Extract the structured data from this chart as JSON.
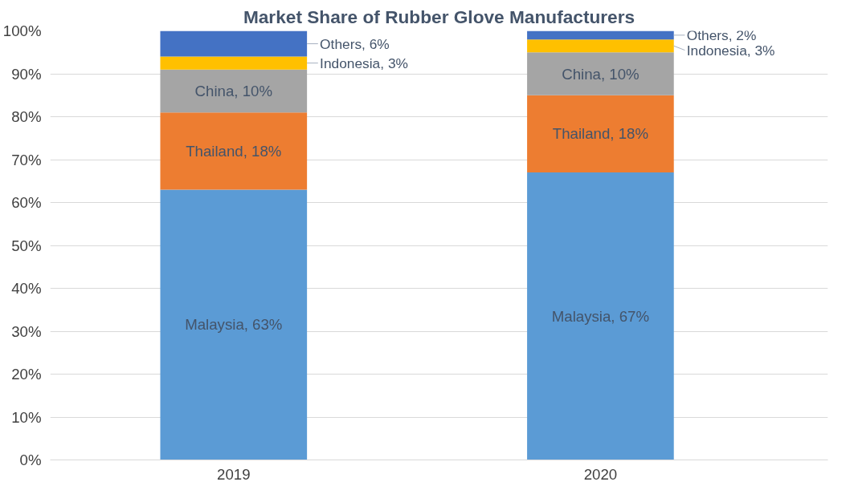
{
  "chart_data": {
    "type": "bar",
    "stacked": true,
    "title": "Market Share of Rubber Glove Manufacturers",
    "categories": [
      "2019",
      "2020"
    ],
    "series": [
      {
        "color": "#5b9bd5",
        "values": [
          63,
          67
        ],
        "value_labels": [
          "Malaysia, 63%",
          "Malaysia, 67%"
        ]
      },
      {
        "color": "#ed7d31",
        "values": [
          18,
          18
        ],
        "value_labels": [
          "Thailand, 18%",
          "Thailand, 18%"
        ]
      },
      {
        "color": "#a5a5a5",
        "values": [
          10,
          10
        ],
        "value_labels": [
          "China, 10%",
          "China, 10%"
        ]
      },
      {
        "color": "#ffc000",
        "values": [
          3,
          3
        ],
        "value_labels": [
          "Indonesia, 3%",
          "Indonesia, 3%"
        ]
      },
      {
        "color": "#4472c4",
        "values": [
          6,
          2
        ],
        "value_labels": [
          "Others, 6%",
          "Others, 2%"
        ]
      }
    ],
    "ylim": [
      0,
      100
    ],
    "yticks": [
      {
        "value": 0,
        "label": "0%"
      },
      {
        "value": 10,
        "label": "10%"
      },
      {
        "value": 20,
        "label": "20%"
      },
      {
        "value": 30,
        "label": "30%"
      },
      {
        "value": 40,
        "label": "40%"
      },
      {
        "value": 50,
        "label": "50%"
      },
      {
        "value": 60,
        "label": "60%"
      },
      {
        "value": 70,
        "label": "70%"
      },
      {
        "value": 80,
        "label": "80%"
      },
      {
        "value": 90,
        "label": "90%"
      },
      {
        "value": 100,
        "label": "100%"
      }
    ],
    "grid": "y"
  }
}
